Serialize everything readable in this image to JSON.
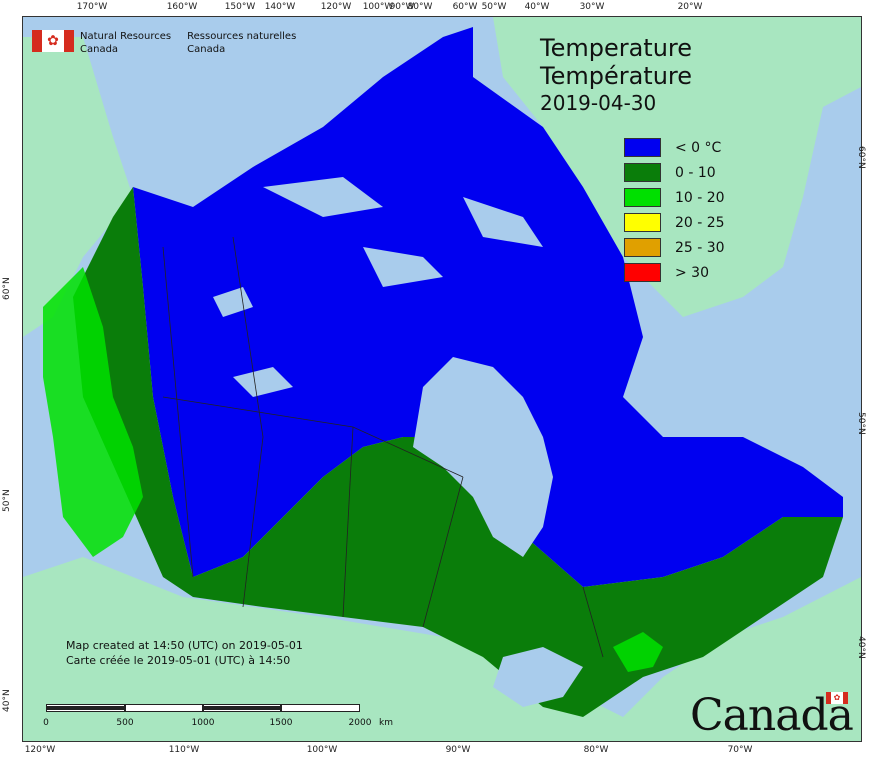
{
  "agency": {
    "en_line1": "Natural Resources",
    "en_line2": "Canada",
    "fr_line1": "Ressources naturelles",
    "fr_line2": "Canada"
  },
  "title": {
    "en": "Temperature",
    "fr": "Température",
    "date": "2019-04-30"
  },
  "legend": [
    {
      "label": "< 0 °C",
      "color": "#0000f0"
    },
    {
      "label": "0 - 10",
      "color": "#0a7d0a"
    },
    {
      "label": "10 - 20",
      "color": "#00e000"
    },
    {
      "label": "20 - 25",
      "color": "#ffff00"
    },
    {
      "label": "25 - 30",
      "color": "#e0a000"
    },
    {
      "label": "> 30",
      "color": "#ff0000"
    }
  ],
  "credits": {
    "en": "Map created at 14:50 (UTC) on 2019-05-01",
    "fr": "Carte créée le 2019-05-01 (UTC) à 14:50"
  },
  "scale": {
    "labels": [
      "0",
      "500",
      "1000",
      "1500",
      "2000"
    ],
    "unit": "km"
  },
  "wordmark": "Canada",
  "graticule": {
    "top": [
      "170°W",
      "160°W",
      "150°W",
      "140°W",
      "120°W",
      "100°W",
      "90°W",
      "80°W",
      "60°W",
      "50°W",
      "40°W",
      "30°W",
      "20°W"
    ],
    "bottom": [
      "120°W",
      "110°W",
      "100°W",
      "90°W",
      "80°W",
      "70°W"
    ],
    "left": [
      "60°N",
      "50°N",
      "40°N"
    ],
    "right": [
      "60°N",
      "50°N",
      "40°N"
    ]
  },
  "colors": {
    "ocean": "#a9ccec",
    "land_other": "#a8e6c0",
    "below_zero": "#0000f0",
    "zero_ten": "#0a7d0a",
    "ten_twenty": "#00e000",
    "flag_red": "#d52b1e"
  }
}
